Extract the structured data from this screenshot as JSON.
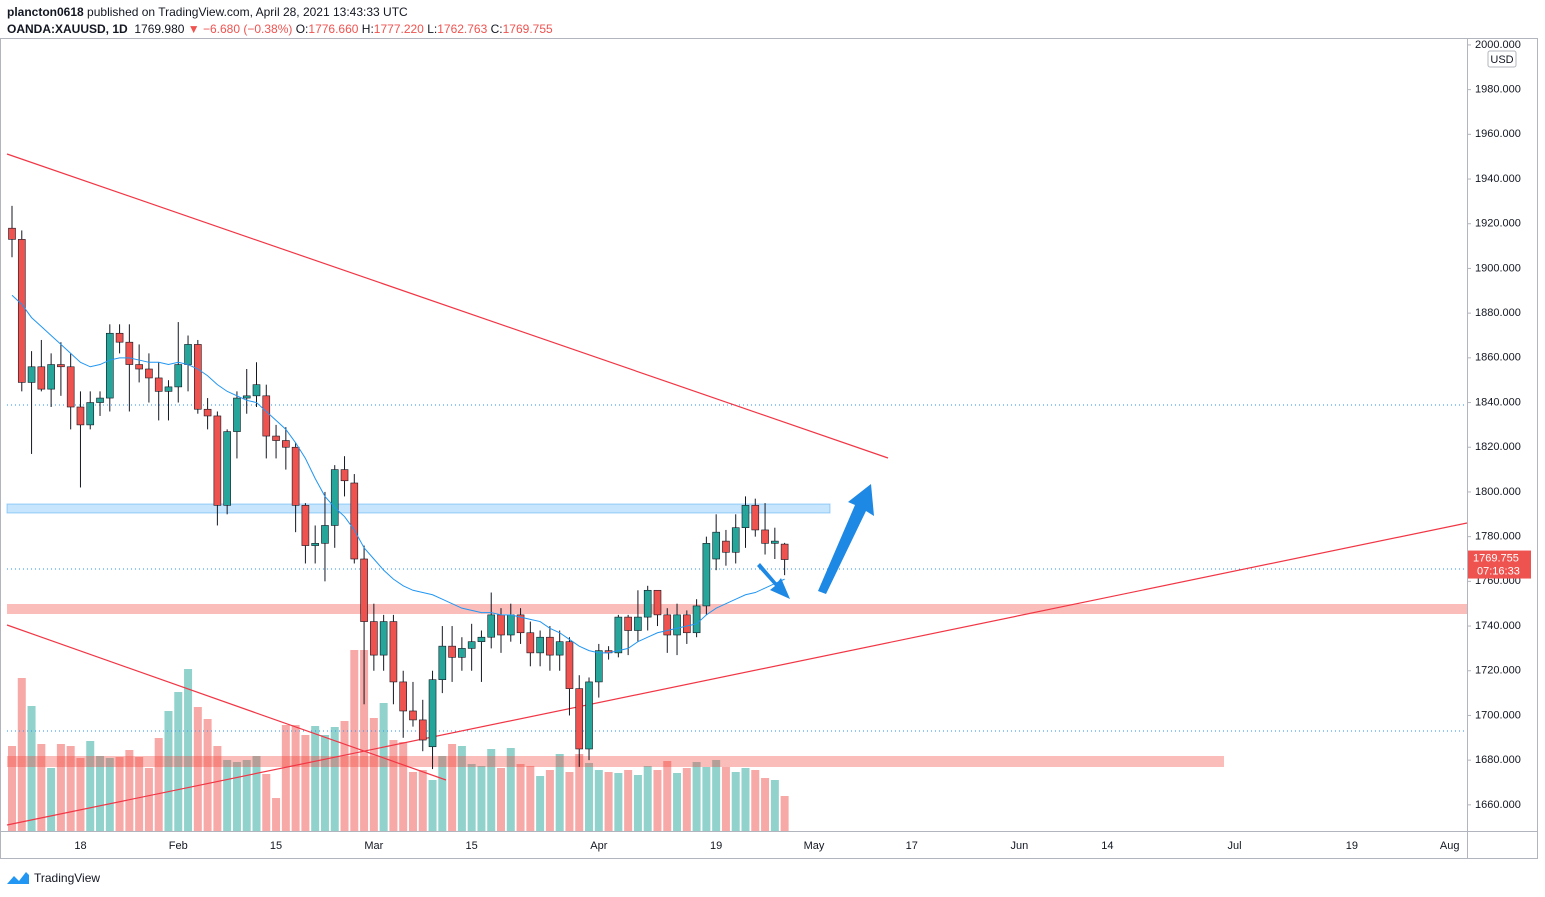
{
  "header": {
    "author": "plancton0618",
    "published": "published on TradingView.com, April 28, 2021 13:43:33 UTC",
    "symbol": "OANDA:XAUUSD, 1D",
    "price": "1769.980",
    "change": "▼ −6.680 (−0.38%)",
    "ohlc": [
      {
        "label": "O:",
        "value": "1776.660"
      },
      {
        "label": "H:",
        "value": "1777.220"
      },
      {
        "label": "L:",
        "value": "1762.763"
      },
      {
        "label": "C:",
        "value": "1769.755"
      }
    ]
  },
  "footer": "TradingView",
  "chart_data": {
    "type": "candlestick",
    "currency": "USD",
    "last_price_label": "1769.755",
    "countdown": "07:16:33",
    "up_color": "#26a69a",
    "down_color": "#ef5350",
    "ma_color": "#2196f3",
    "ylim": [
      1648.3,
      2003.1
    ],
    "yticks": [
      {
        "value": 1660,
        "label": "1660.000"
      },
      {
        "value": 1680,
        "label": "1680.000"
      },
      {
        "value": 1700,
        "label": "1700.000"
      },
      {
        "value": 1720,
        "label": "1720.000"
      },
      {
        "value": 1740,
        "label": "1740.000"
      },
      {
        "value": 1760,
        "label": "1760.000"
      },
      {
        "value": 1780,
        "label": "1780.000"
      },
      {
        "value": 1800,
        "label": "1800.000"
      },
      {
        "value": 1820,
        "label": "1820.000"
      },
      {
        "value": 1840,
        "label": "1840.000"
      },
      {
        "value": 1860,
        "label": "1860.000"
      },
      {
        "value": 1880,
        "label": "1880.000"
      },
      {
        "value": 1900,
        "label": "1900.000"
      },
      {
        "value": 1920,
        "label": "1920.000"
      },
      {
        "value": 1940,
        "label": "1940.000"
      },
      {
        "value": 1960,
        "label": "1960.000"
      },
      {
        "value": 1980,
        "label": "1980.000"
      },
      {
        "value": 2000,
        "label": "2000.000"
      }
    ],
    "categories": [
      null,
      null,
      null,
      null,
      null,
      null,
      null,
      "18",
      null,
      null,
      null,
      null,
      null,
      null,
      null,
      null,
      null,
      "Feb",
      null,
      null,
      null,
      null,
      null,
      null,
      null,
      null,
      null,
      "15",
      null,
      null,
      null,
      null,
      null,
      null,
      null,
      null,
      null,
      "Mar",
      null,
      null,
      null,
      null,
      null,
      null,
      null,
      null,
      null,
      "15",
      null,
      null,
      null,
      null,
      null,
      null,
      null,
      null,
      null,
      null,
      null,
      null,
      "Apr",
      null,
      null,
      null,
      null,
      null,
      null,
      null,
      null,
      null,
      null,
      null,
      "19",
      null,
      null,
      null,
      null,
      null,
      null,
      null,
      null,
      null,
      "May",
      null,
      null,
      null,
      null,
      null,
      null,
      null,
      null,
      null,
      "17",
      null,
      null,
      null,
      null,
      null,
      null,
      null,
      null,
      null,
      null,
      "Jun",
      null,
      null,
      null,
      null,
      null,
      null,
      null,
      null,
      "14",
      null,
      null,
      null,
      null,
      null,
      null,
      null,
      null,
      null,
      null,
      null,
      null,
      "Jul",
      null,
      null,
      null,
      null,
      null,
      null,
      null,
      null,
      null,
      null,
      null,
      "19",
      null,
      null,
      null,
      null,
      null,
      null,
      null,
      null,
      null,
      "Aug"
    ],
    "open": [
      1918,
      1913,
      1849,
      1856,
      1846,
      1857,
      1856,
      1838,
      1830,
      1840,
      1842,
      1871,
      1867,
      1857,
      1855,
      1851,
      1845,
      1847,
      1857,
      1866,
      1837,
      1834,
      1794,
      1827,
      1842,
      1843,
      1843,
      1825,
      1823,
      1820,
      1794,
      1776,
      1777,
      1785,
      1810,
      1804,
      1770,
      1742,
      1727,
      1742,
      1715,
      1702,
      1698,
      1686,
      1716,
      1731,
      1726,
      1730,
      1733,
      1735,
      1745,
      1736,
      1745,
      1737,
      1728,
      1735,
      1727,
      1733,
      1712,
      1685,
      1715,
      1729,
      1728,
      1744,
      1738,
      1744,
      1756,
      1745,
      1736,
      1745,
      1737,
      1749,
      1770,
      1778,
      1773,
      1784,
      1794,
      1783,
      1777,
      1776.66,
      null,
      null,
      null,
      null,
      null,
      null,
      null,
      null,
      null,
      null,
      null,
      null,
      null,
      null,
      null,
      null,
      null,
      null,
      null,
      null,
      null,
      null,
      null,
      null,
      null,
      null,
      null,
      null,
      null,
      null,
      null,
      null,
      null,
      null,
      null,
      null,
      null,
      null,
      null,
      null,
      null,
      null,
      null,
      null,
      null,
      null,
      null,
      null,
      null,
      null,
      null,
      null,
      null,
      null,
      null,
      null,
      null,
      null,
      null,
      null,
      null,
      null,
      null,
      null,
      null,
      null,
      null,
      null
    ],
    "high": [
      1928,
      1917,
      1863,
      1868,
      1862,
      1867,
      1862,
      1845,
      1845,
      1845,
      1875,
      1875,
      1875,
      1866,
      1862,
      1858,
      1850,
      1876,
      1870,
      1868,
      1842,
      1836,
      1828,
      1845,
      1855,
      1858,
      1848,
      1830,
      1829,
      1822,
      1795,
      1785,
      1800,
      1812,
      1816,
      1808,
      1776,
      1750,
      1745,
      1745,
      1720,
      1715,
      1707,
      1720,
      1740,
      1740,
      1735,
      1741,
      1738,
      1755,
      1748,
      1750,
      1748,
      1742,
      1738,
      1740,
      1738,
      1735,
      1718,
      1717,
      1732,
      1731,
      1745,
      1745,
      1756,
      1758,
      1756,
      1748,
      1750,
      1747,
      1752,
      1780,
      1790,
      1783,
      1790,
      1798,
      1797,
      1795,
      1784,
      1777.22,
      null,
      null,
      null,
      null,
      null,
      null,
      null,
      null,
      null,
      null,
      null,
      null,
      null,
      null,
      null,
      null,
      null,
      null,
      null,
      null,
      null,
      null,
      null,
      null,
      null,
      null,
      null,
      null,
      null,
      null,
      null,
      null,
      null,
      null,
      null,
      null,
      null,
      null,
      null,
      null,
      null,
      null,
      null,
      null,
      null,
      null,
      null,
      null,
      null,
      null,
      null,
      null,
      null,
      null,
      null,
      null,
      null,
      null,
      null,
      null,
      null,
      null,
      null,
      null,
      null,
      null,
      null,
      null
    ],
    "low": [
      1905,
      1845,
      1817,
      1845,
      1838,
      1843,
      1828,
      1802,
      1828,
      1834,
      1836,
      1862,
      1836,
      1849,
      1840,
      1832,
      1832,
      1840,
      1845,
      1835,
      1828,
      1785,
      1790,
      1815,
      1835,
      1838,
      1815,
      1815,
      1810,
      1782,
      1768,
      1768,
      1760,
      1775,
      1798,
      1768,
      1705,
      1720,
      1720,
      1705,
      1690,
      1695,
      1684,
      1676,
      1710,
      1715,
      1720,
      1720,
      1715,
      1730,
      1728,
      1733,
      1732,
      1722,
      1722,
      1720,
      1720,
      1700,
      1677,
      1680,
      1708,
      1725,
      1726,
      1727,
      1733,
      1738,
      1740,
      1728,
      1727,
      1732,
      1735,
      1745,
      1765,
      1767,
      1768,
      1775,
      1780,
      1772,
      1770,
      1762.763,
      null,
      null,
      null,
      null,
      null,
      null,
      null,
      null,
      null,
      null,
      null,
      null,
      null,
      null,
      null,
      null,
      null,
      null,
      null,
      null,
      null,
      null,
      null,
      null,
      null,
      null,
      null,
      null,
      null,
      null,
      null,
      null,
      null,
      null,
      null,
      null,
      null,
      null,
      null,
      null,
      null,
      null,
      null,
      null,
      null,
      null,
      null,
      null,
      null,
      null,
      null,
      null,
      null,
      null,
      null,
      null,
      null,
      null,
      null,
      null,
      null,
      null,
      null,
      null,
      null,
      null,
      null,
      null
    ],
    "close": [
      1913,
      1849,
      1856,
      1846,
      1857,
      1856,
      1838,
      1830,
      1840,
      1842,
      1871,
      1867,
      1857,
      1855,
      1851,
      1845,
      1847,
      1857,
      1866,
      1837,
      1834,
      1794,
      1827,
      1842,
      1843,
      1848,
      1825,
      1823,
      1820,
      1794,
      1776,
      1777,
      1785,
      1810,
      1805,
      1770,
      1742,
      1727,
      1742,
      1715,
      1702,
      1698,
      1689,
      1716,
      1731,
      1726,
      1730,
      1733,
      1735,
      1745,
      1736,
      1745,
      1737,
      1728,
      1735,
      1727,
      1733,
      1712,
      1685,
      1715,
      1729,
      1728,
      1744,
      1738,
      1744,
      1756,
      1745,
      1736,
      1745,
      1737,
      1749,
      1777,
      1782,
      1773,
      1784,
      1794,
      1783,
      1777,
      1778,
      1769.755,
      null,
      null,
      null,
      null,
      null,
      null,
      null,
      null,
      null,
      null,
      null,
      null,
      null,
      null,
      null,
      null,
      null,
      null,
      null,
      null,
      null,
      null,
      null,
      null,
      null,
      null,
      null,
      null,
      null,
      null,
      null,
      null,
      null,
      null,
      null,
      null,
      null,
      null,
      null,
      null,
      null,
      null,
      null,
      null,
      null,
      null,
      null,
      null,
      null,
      null,
      null,
      null,
      null,
      null,
      null,
      null,
      null,
      null,
      null,
      null,
      null,
      null,
      null,
      null,
      null,
      null,
      null,
      null
    ],
    "volume": [
      85,
      153,
      125,
      87,
      63,
      87,
      85,
      73,
      90,
      75,
      73,
      74,
      81,
      74,
      63,
      93,
      120,
      139,
      162,
      124,
      112,
      85,
      71,
      69,
      71,
      75,
      57,
      33,
      106,
      106,
      96,
      105,
      96,
      104,
      110,
      181,
      181,
      113,
      128,
      91,
      89,
      59,
      61,
      51,
      75,
      87,
      85,
      67,
      65,
      82,
      63,
      83,
      67,
      65,
      55,
      61,
      77,
      59,
      77,
      68,
      61,
      59,
      58,
      61,
      56,
      65,
      61,
      70,
      58,
      63,
      69,
      64,
      71,
      64,
      59,
      63,
      61,
      53,
      51,
      35,
      null,
      null,
      null,
      null,
      null,
      null,
      null,
      null,
      null,
      null,
      null,
      null,
      null,
      null,
      null,
      null,
      null,
      null,
      null,
      null,
      null,
      null,
      null,
      null,
      null,
      null,
      null,
      null,
      null,
      null,
      null,
      null,
      null,
      null,
      null,
      null,
      null,
      null,
      null,
      null,
      null,
      null,
      null,
      null,
      null,
      null,
      null,
      null,
      null,
      null,
      null,
      null,
      null,
      null,
      null,
      null,
      null,
      null,
      null,
      null,
      null,
      null,
      null,
      null,
      null,
      null,
      null,
      null
    ],
    "ma": [
      1888,
      1884,
      1878,
      1874,
      1870,
      1866,
      1862,
      1858,
      1856,
      1857,
      1859,
      1860,
      1860,
      1859,
      1858,
      1858,
      1857,
      1858,
      1857,
      1855,
      1852,
      1848,
      1845,
      1843,
      1841,
      1840,
      1836,
      1832,
      1828,
      1822,
      1815,
      1806,
      1798,
      1793,
      1789,
      1783,
      1775,
      1770,
      1765,
      1761,
      1758,
      1756,
      1755,
      1754,
      1752,
      1750,
      1748,
      1747,
      1746,
      1746,
      1745,
      1745,
      1744,
      1743,
      1742,
      1739,
      1737,
      1734,
      1731,
      1729,
      1728,
      1728,
      1729,
      1730,
      1733,
      1735,
      1737,
      1738,
      1739,
      1740,
      1741,
      1745,
      1748,
      1750,
      1752,
      1754,
      1755,
      1757,
      1759,
      1761,
      null,
      null,
      null,
      null,
      null,
      null,
      null,
      null,
      null,
      null,
      null,
      null,
      null,
      null,
      null,
      null,
      null,
      null,
      null,
      null,
      null,
      null,
      null,
      null,
      null,
      null,
      null,
      null,
      null,
      null,
      null,
      null,
      null,
      null,
      null,
      null,
      null,
      null,
      null,
      null,
      null,
      null,
      null,
      null,
      null,
      null,
      null,
      null,
      null,
      null,
      null,
      null,
      null,
      null,
      null,
      null,
      null,
      null,
      null,
      null,
      null,
      null,
      null,
      null,
      null,
      null,
      null,
      null
    ]
  }
}
